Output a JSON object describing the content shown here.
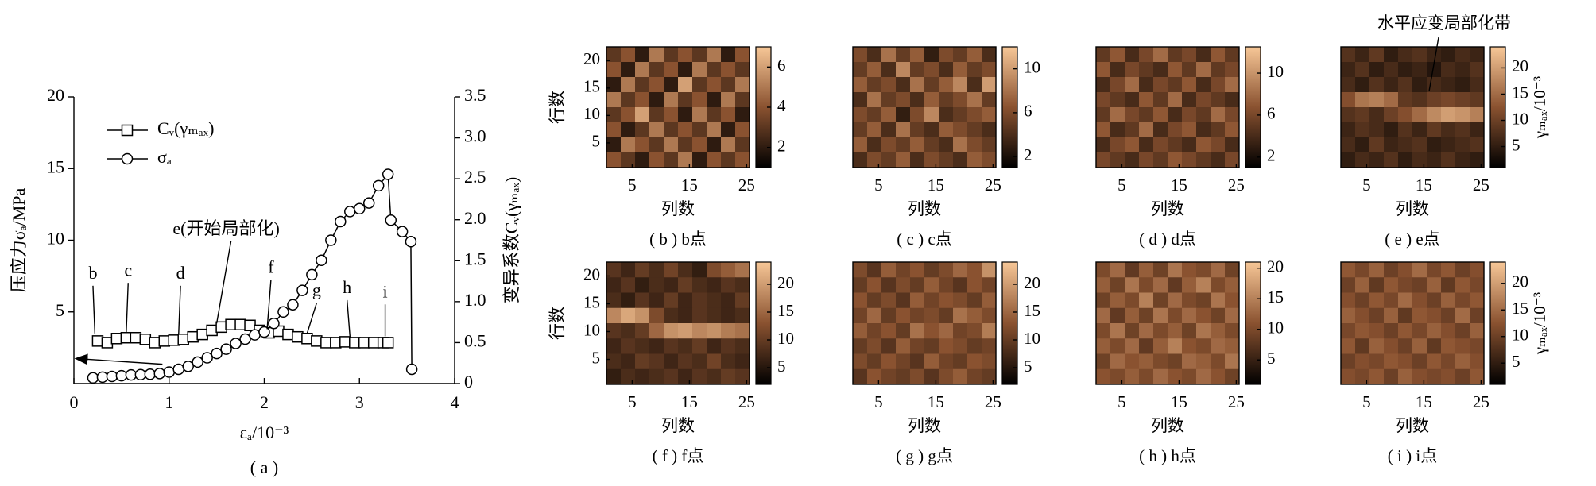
{
  "chart_data": [
    {
      "type": "line",
      "xlabel": "εₐ/10⁻³",
      "ylabel": "压应力σₐ/MPa",
      "y2label": "变异系数Cᵥ(γₘₐₓ)",
      "caption": "( a )",
      "xlim": [
        0,
        4
      ],
      "xticks": [
        0,
        1,
        2,
        3,
        4
      ],
      "ylim": [
        0,
        20
      ],
      "yticks": [
        5,
        10,
        15,
        20
      ],
      "y2lim": [
        0,
        3.5
      ],
      "y2ticks": [
        0,
        0.5,
        {
          "value": 1,
          "label": "1.0"
        },
        1.5,
        {
          "value": 2,
          "label": "2.0"
        },
        2.5,
        {
          "value": 3,
          "label": "3.0"
        },
        3.5
      ],
      "legend": "upper-left",
      "series": [
        {
          "name": "Cᵥ(γₘₐₓ)",
          "marker": "square",
          "axis": "y2",
          "color": "#000000",
          "x": [
            0.25,
            0.35,
            0.45,
            0.55,
            0.65,
            0.75,
            0.85,
            0.95,
            1.05,
            1.15,
            1.25,
            1.35,
            1.45,
            1.55,
            1.65,
            1.75,
            1.85,
            1.95,
            2.05,
            2.15,
            2.25,
            2.35,
            2.45,
            2.55,
            2.65,
            2.75,
            2.85,
            2.95,
            3.05,
            3.15,
            3.25,
            3.3
          ],
          "values": [
            0.52,
            0.5,
            0.55,
            0.56,
            0.56,
            0.54,
            0.5,
            0.52,
            0.53,
            0.54,
            0.57,
            0.6,
            0.65,
            0.69,
            0.72,
            0.72,
            0.71,
            0.65,
            0.62,
            0.64,
            0.6,
            0.57,
            0.55,
            0.52,
            0.5,
            0.5,
            0.51,
            0.5,
            0.5,
            0.5,
            0.5,
            0.5
          ]
        },
        {
          "name": "σₐ",
          "marker": "circle",
          "color": "#000000",
          "x": [
            0.2,
            0.3,
            0.4,
            0.5,
            0.6,
            0.7,
            0.8,
            0.9,
            1.0,
            1.1,
            1.2,
            1.3,
            1.4,
            1.5,
            1.6,
            1.7,
            1.8,
            1.9,
            2.0,
            2.1,
            2.2,
            2.3,
            2.4,
            2.5,
            2.6,
            2.7,
            2.8,
            2.9,
            3.0,
            3.1,
            3.2,
            3.3,
            3.33,
            3.45,
            3.54,
            3.55
          ],
          "values": [
            0.4,
            0.45,
            0.5,
            0.55,
            0.6,
            0.62,
            0.65,
            0.7,
            0.8,
            1.0,
            1.2,
            1.5,
            1.8,
            2.1,
            2.4,
            2.8,
            3.1,
            3.4,
            3.6,
            4.2,
            5.0,
            5.5,
            6.5,
            7.6,
            8.6,
            10.0,
            11.3,
            12.0,
            12.2,
            12.6,
            13.8,
            14.6,
            11.4,
            10.6,
            9.9,
            1.0
          ]
        }
      ],
      "annotations": [
        "b",
        "c",
        "d",
        "e(开始局部化)",
        "f",
        "g",
        "h",
        "i"
      ]
    },
    {
      "type": "heatmap",
      "title": "( b ) b点",
      "xlabel": "列数",
      "ylabel": "行数",
      "xlim": [
        1,
        25
      ],
      "ylim": [
        1,
        22
      ],
      "xticks": [
        5,
        15,
        25
      ],
      "yticks": [
        5,
        10,
        15,
        20
      ],
      "clim": [
        1,
        7
      ],
      "cticks": [
        2,
        4,
        6
      ],
      "colormap": [
        "#000000",
        "#8a5230",
        "#f7c797"
      ],
      "values": [
        [
          3,
          4,
          2,
          5,
          3,
          4,
          3,
          5,
          2,
          4
        ],
        [
          4,
          2,
          5,
          3,
          4,
          2,
          5,
          3,
          4,
          3
        ],
        [
          2,
          5,
          3,
          4,
          2,
          6,
          3,
          4,
          3,
          5
        ],
        [
          5,
          3,
          4,
          2,
          5,
          3,
          4,
          2,
          5,
          3
        ],
        [
          3,
          4,
          6,
          3,
          4,
          2,
          5,
          3,
          4,
          2
        ],
        [
          4,
          2,
          3,
          5,
          3,
          4,
          3,
          5,
          2,
          4
        ],
        [
          2,
          5,
          4,
          3,
          5,
          3,
          4,
          2,
          5,
          3
        ],
        [
          4,
          3,
          2,
          4,
          3,
          5,
          2,
          4,
          3,
          4
        ]
      ]
    },
    {
      "type": "heatmap",
      "title": "( c ) c点",
      "xlabel": "列数",
      "xlim": [
        1,
        25
      ],
      "ylim": [
        1,
        22
      ],
      "xticks": [
        5,
        15,
        25
      ],
      "clim": [
        1,
        12
      ],
      "cticks": [
        2,
        6,
        10
      ],
      "colormap": [
        "#000000",
        "#8a5230",
        "#f7c797"
      ],
      "values": [
        [
          6,
          4,
          8,
          5,
          7,
          3,
          6,
          5,
          7,
          4
        ],
        [
          5,
          7,
          4,
          9,
          5,
          6,
          4,
          7,
          5,
          6
        ],
        [
          7,
          5,
          6,
          4,
          8,
          5,
          7,
          9,
          4,
          10
        ],
        [
          4,
          8,
          5,
          6,
          4,
          7,
          5,
          6,
          8,
          5
        ],
        [
          6,
          5,
          7,
          3,
          6,
          9,
          4,
          5,
          6,
          7
        ],
        [
          5,
          7,
          4,
          8,
          5,
          4,
          7,
          6,
          5,
          4
        ],
        [
          7,
          4,
          6,
          5,
          7,
          5,
          4,
          8,
          6,
          5
        ],
        [
          4,
          6,
          5,
          7,
          4,
          6,
          5,
          4,
          7,
          6
        ]
      ]
    },
    {
      "type": "heatmap",
      "title": "( d ) d点",
      "xlabel": "列数",
      "xlim": [
        1,
        25
      ],
      "ylim": [
        1,
        22
      ],
      "xticks": [
        5,
        15,
        25
      ],
      "clim": [
        1,
        12.5
      ],
      "cticks": [
        2,
        6,
        10
      ],
      "colormap": [
        "#000000",
        "#8a5230",
        "#f7c797"
      ],
      "values": [
        [
          5,
          7,
          4,
          6,
          8,
          5,
          6,
          4,
          7,
          5
        ],
        [
          7,
          4,
          6,
          5,
          4,
          7,
          5,
          8,
          5,
          6
        ],
        [
          4,
          6,
          8,
          4,
          6,
          5,
          7,
          4,
          6,
          8
        ],
        [
          6,
          5,
          4,
          7,
          5,
          8,
          4,
          6,
          5,
          4
        ],
        [
          5,
          8,
          6,
          5,
          7,
          4,
          6,
          5,
          8,
          6
        ],
        [
          7,
          4,
          5,
          8,
          4,
          6,
          7,
          4,
          5,
          7
        ],
        [
          4,
          6,
          7,
          4,
          6,
          5,
          4,
          7,
          6,
          4
        ],
        [
          6,
          5,
          4,
          6,
          5,
          7,
          6,
          5,
          4,
          6
        ]
      ]
    },
    {
      "type": "heatmap",
      "title": "( e ) e点",
      "xlabel": "列数",
      "clabel": "γₘₐₓ/10⁻³",
      "annotation": "水平应变局部化带",
      "xlim": [
        1,
        25
      ],
      "ylim": [
        1,
        22
      ],
      "xticks": [
        5,
        15,
        25
      ],
      "clim": [
        1,
        24
      ],
      "cticks": [
        5,
        10,
        15,
        20
      ],
      "colormap": [
        "#000000",
        "#8a5230",
        "#f7c797"
      ],
      "values": [
        [
          8,
          6,
          9,
          5,
          7,
          8,
          6,
          5,
          7,
          6
        ],
        [
          6,
          8,
          5,
          7,
          5,
          6,
          4,
          7,
          6,
          8
        ],
        [
          7,
          5,
          8,
          6,
          8,
          5,
          7,
          6,
          5,
          7
        ],
        [
          12,
          16,
          17,
          15,
          9,
          8,
          10,
          11,
          10,
          9
        ],
        [
          8,
          9,
          7,
          10,
          12,
          15,
          18,
          20,
          19,
          17
        ],
        [
          6,
          8,
          7,
          5,
          8,
          6,
          9,
          7,
          8,
          6
        ],
        [
          7,
          5,
          9,
          6,
          7,
          8,
          5,
          6,
          7,
          8
        ],
        [
          5,
          7,
          6,
          8,
          5,
          7,
          6,
          8,
          6,
          5
        ]
      ]
    },
    {
      "type": "heatmap",
      "title": "( f ) f点",
      "xlabel": "列数",
      "ylabel": "行数",
      "xlim": [
        1,
        25
      ],
      "ylim": [
        1,
        22
      ],
      "xticks": [
        5,
        15,
        25
      ],
      "yticks": [
        5,
        10,
        15,
        20
      ],
      "clim": [
        2,
        24
      ],
      "cticks": [
        5,
        10,
        15,
        20
      ],
      "colormap": [
        "#000000",
        "#8a5230",
        "#f7c797"
      ],
      "values": [
        [
          9,
          7,
          10,
          8,
          11,
          8,
          6,
          12,
          14,
          16
        ],
        [
          7,
          9,
          6,
          8,
          7,
          10,
          8,
          7,
          9,
          8
        ],
        [
          8,
          6,
          9,
          7,
          10,
          7,
          9,
          8,
          7,
          10
        ],
        [
          18,
          21,
          19,
          12,
          8,
          7,
          9,
          8,
          7,
          8
        ],
        [
          9,
          8,
          10,
          15,
          19,
          20,
          18,
          19,
          17,
          16
        ],
        [
          7,
          9,
          8,
          7,
          9,
          8,
          10,
          7,
          9,
          8
        ],
        [
          8,
          7,
          10,
          9,
          7,
          9,
          8,
          11,
          8,
          7
        ],
        [
          6,
          8,
          7,
          8,
          9,
          7,
          9,
          8,
          10,
          9
        ]
      ]
    },
    {
      "type": "heatmap",
      "title": "( g ) g点",
      "xlabel": "列数",
      "xlim": [
        1,
        25
      ],
      "ylim": [
        1,
        22
      ],
      "xticks": [
        5,
        15,
        25
      ],
      "clim": [
        2,
        24
      ],
      "cticks": [
        5,
        10,
        15,
        20
      ],
      "colormap": [
        "#000000",
        "#8a5230",
        "#f7c797"
      ],
      "values": [
        [
          12,
          9,
          14,
          11,
          13,
          10,
          12,
          15,
          13,
          19
        ],
        [
          10,
          13,
          9,
          12,
          10,
          14,
          11,
          9,
          13,
          11
        ],
        [
          13,
          10,
          12,
          9,
          14,
          11,
          13,
          12,
          10,
          14
        ],
        [
          11,
          15,
          10,
          13,
          11,
          12,
          10,
          16,
          14,
          12
        ],
        [
          14,
          11,
          13,
          10,
          16,
          13,
          15,
          11,
          12,
          17
        ],
        [
          10,
          12,
          9,
          14,
          11,
          10,
          13,
          12,
          10,
          11
        ],
        [
          12,
          10,
          13,
          11,
          9,
          14,
          11,
          10,
          13,
          12
        ],
        [
          9,
          13,
          11,
          10,
          12,
          9,
          12,
          14,
          11,
          10
        ]
      ]
    },
    {
      "type": "heatmap",
      "title": "( h ) h点",
      "xlabel": "列数",
      "xlim": [
        1,
        25
      ],
      "ylim": [
        1,
        22
      ],
      "xticks": [
        5,
        15,
        25
      ],
      "clim": [
        1,
        21
      ],
      "cticks": [
        5,
        10,
        15,
        20
      ],
      "colormap": [
        "#000000",
        "#8a5230",
        "#f7c797"
      ],
      "values": [
        [
          10,
          13,
          8,
          12,
          9,
          14,
          11,
          10,
          13,
          9
        ],
        [
          12,
          9,
          14,
          10,
          13,
          8,
          12,
          15,
          10,
          12
        ],
        [
          9,
          12,
          10,
          15,
          9,
          13,
          10,
          9,
          14,
          11
        ],
        [
          13,
          8,
          12,
          9,
          14,
          10,
          13,
          11,
          9,
          13
        ],
        [
          10,
          14,
          9,
          13,
          10,
          12,
          9,
          14,
          12,
          10
        ],
        [
          12,
          10,
          13,
          8,
          12,
          15,
          11,
          10,
          13,
          12
        ],
        [
          9,
          13,
          11,
          12,
          10,
          9,
          13,
          12,
          10,
          14
        ],
        [
          11,
          10,
          12,
          10,
          13,
          11,
          10,
          13,
          11,
          9
        ]
      ]
    },
    {
      "type": "heatmap",
      "title": "( i ) i点",
      "xlabel": "列数",
      "clabel": "γₘₐₓ/10⁻³",
      "xlim": [
        1,
        25
      ],
      "ylim": [
        1,
        22
      ],
      "xticks": [
        5,
        15,
        25
      ],
      "clim": [
        1,
        24
      ],
      "cticks": [
        5,
        10,
        15,
        20
      ],
      "colormap": [
        "#000000",
        "#8a5230",
        "#f7c797"
      ],
      "values": [
        [
          13,
          11,
          14,
          10,
          12,
          15,
          11,
          13,
          10,
          12
        ],
        [
          10,
          14,
          9,
          13,
          11,
          10,
          14,
          9,
          13,
          11
        ],
        [
          12,
          10,
          13,
          11,
          15,
          12,
          10,
          14,
          11,
          13
        ],
        [
          14,
          12,
          10,
          14,
          9,
          13,
          12,
          10,
          15,
          10
        ],
        [
          11,
          13,
          12,
          10,
          13,
          11,
          14,
          12,
          10,
          14
        ],
        [
          13,
          9,
          14,
          12,
          10,
          14,
          9,
          13,
          12,
          11
        ],
        [
          10,
          12,
          11,
          13,
          12,
          10,
          13,
          11,
          14,
          12
        ],
        [
          12,
          11,
          13,
          10,
          14,
          12,
          11,
          12,
          10,
          13
        ]
      ]
    }
  ]
}
